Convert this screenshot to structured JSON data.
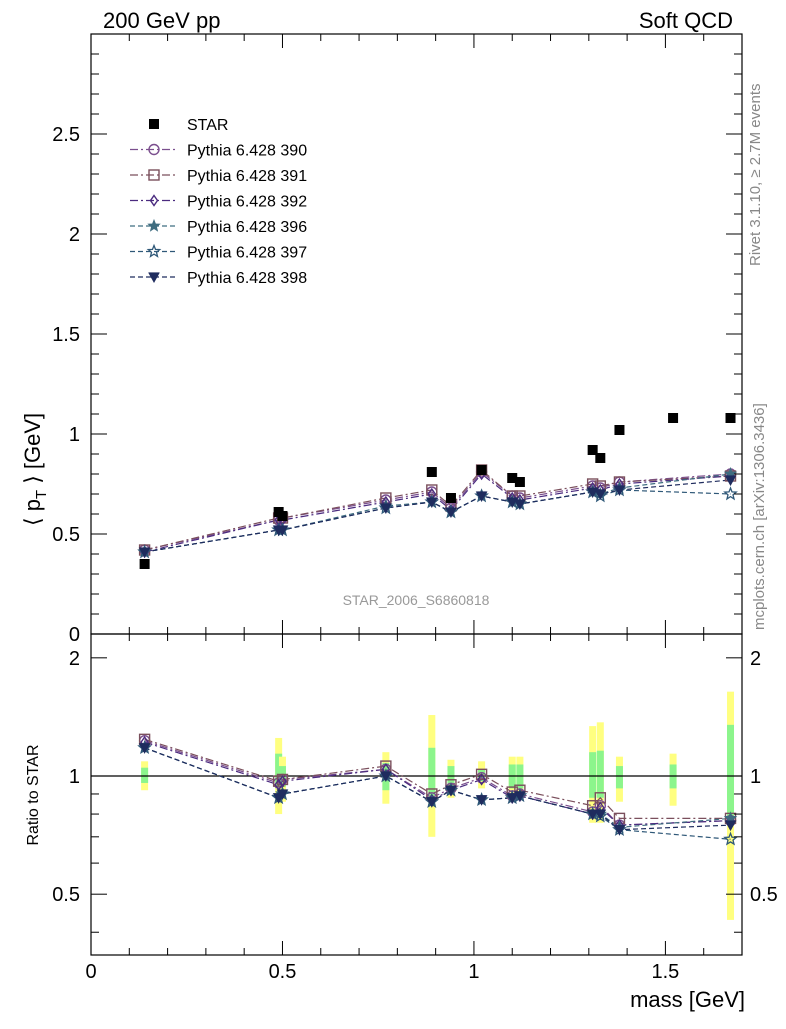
{
  "header": {
    "left": "200 GeV pp",
    "right": "Soft QCD"
  },
  "side_labels": {
    "rivet": "Rivet 3.1.10, ≥ 2.7M events",
    "mcplots": "mcplots.cern.ch [arXiv:1306.3436]"
  },
  "watermark": "STAR_2006_S6860818",
  "chart_data": [
    {
      "type": "scatter",
      "panel": "main",
      "ylabel": "⟨ p_T ⟩ [GeV]",
      "xlim": [
        0,
        1.7
      ],
      "ylim": [
        0,
        3.0
      ],
      "y_ticks": [
        0,
        0.5,
        1,
        1.5,
        2,
        2.5
      ],
      "y_tick_labels": [
        "0",
        "0.5",
        "1",
        "1.5",
        "2",
        "2.5"
      ],
      "legend_position": "top-left",
      "x": [
        0.14,
        0.49,
        0.5,
        0.77,
        0.89,
        0.94,
        1.02,
        1.1,
        1.12,
        1.31,
        1.33,
        1.38,
        1.52,
        1.67
      ],
      "data": {
        "name": "STAR",
        "marker": "square",
        "color": "#000000",
        "x": [
          0.14,
          0.49,
          0.5,
          0.89,
          0.94,
          1.02,
          1.1,
          1.12,
          1.31,
          1.33,
          1.38,
          1.52,
          1.67
        ],
        "values": [
          0.35,
          0.61,
          0.59,
          0.81,
          0.68,
          0.82,
          0.78,
          0.76,
          0.92,
          0.88,
          1.02,
          1.08,
          1.08
        ]
      },
      "series": [
        {
          "name": "Pythia 6.428 390",
          "marker": "circle-open",
          "dash": "dashdot",
          "color": "#7b4f8e",
          "x": [
            0.14,
            0.49,
            0.5,
            0.77,
            0.89,
            0.94,
            1.02,
            1.1,
            1.12,
            1.31,
            1.33,
            1.38,
            1.67
          ],
          "values": [
            0.42,
            0.57,
            0.58,
            0.67,
            0.71,
            0.63,
            0.81,
            0.69,
            0.68,
            0.74,
            0.73,
            0.76,
            0.8
          ]
        },
        {
          "name": "Pythia 6.428 391",
          "marker": "square-open",
          "dash": "dashdot",
          "color": "#7a4f5c",
          "x": [
            0.14,
            0.49,
            0.5,
            0.77,
            0.89,
            0.94,
            1.02,
            1.1,
            1.12,
            1.31,
            1.33,
            1.38,
            1.67
          ],
          "values": [
            0.42,
            0.58,
            0.58,
            0.68,
            0.72,
            0.64,
            0.82,
            0.69,
            0.69,
            0.75,
            0.74,
            0.76,
            0.79
          ]
        },
        {
          "name": "Pythia 6.428 392",
          "marker": "diamond-open",
          "dash": "dashdot",
          "color": "#4b2b7f",
          "x": [
            0.14,
            0.49,
            0.5,
            0.77,
            0.89,
            0.94,
            1.02,
            1.1,
            1.12,
            1.31,
            1.33,
            1.38,
            1.67
          ],
          "values": [
            0.41,
            0.57,
            0.57,
            0.66,
            0.7,
            0.62,
            0.8,
            0.68,
            0.67,
            0.73,
            0.72,
            0.75,
            0.79
          ]
        },
        {
          "name": "Pythia 6.428 396",
          "marker": "star",
          "dash": "dashed",
          "color": "#3f6d80",
          "x": [
            0.14,
            0.49,
            0.5,
            0.77,
            0.89,
            0.94,
            1.02,
            1.1,
            1.12,
            1.31,
            1.33,
            1.38,
            1.67
          ],
          "values": [
            0.41,
            0.52,
            0.52,
            0.64,
            0.66,
            0.61,
            0.69,
            0.66,
            0.65,
            0.71,
            0.7,
            0.73,
            0.8
          ]
        },
        {
          "name": "Pythia 6.428 397",
          "marker": "star-open",
          "dash": "dashed",
          "color": "#2f5878",
          "x": [
            0.14,
            0.49,
            0.5,
            0.77,
            0.89,
            0.94,
            1.02,
            1.1,
            1.12,
            1.31,
            1.33,
            1.38,
            1.67
          ],
          "values": [
            0.41,
            0.52,
            0.52,
            0.63,
            0.66,
            0.61,
            0.69,
            0.66,
            0.65,
            0.71,
            0.69,
            0.72,
            0.7
          ]
        },
        {
          "name": "Pythia 6.428 398",
          "marker": "triangle-down",
          "dash": "dashed",
          "color": "#1f2c5e",
          "x": [
            0.14,
            0.49,
            0.5,
            0.77,
            0.89,
            0.94,
            1.02,
            1.1,
            1.12,
            1.31,
            1.33,
            1.38,
            1.67
          ],
          "values": [
            0.41,
            0.52,
            0.52,
            0.63,
            0.66,
            0.61,
            0.69,
            0.66,
            0.65,
            0.71,
            0.7,
            0.72,
            0.77
          ]
        }
      ]
    },
    {
      "type": "line",
      "panel": "ratio",
      "xlabel": "mass [GeV]",
      "ylabel": "Ratio to STAR",
      "xlim": [
        0,
        1.7
      ],
      "ylim": [
        0.35,
        2.3
      ],
      "x_ticks": [
        0,
        0.5,
        1,
        1.5
      ],
      "x_tick_labels": [
        "0",
        "0.5",
        "1",
        "1.5"
      ],
      "y_ticks": [
        0.5,
        1,
        2
      ],
      "y_tick_labels": [
        "0.5",
        "1",
        "2"
      ],
      "reference_line": 1,
      "uncertainty_bands": {
        "x": [
          0.14,
          0.49,
          0.5,
          0.77,
          0.89,
          0.94,
          1.02,
          1.1,
          1.12,
          1.31,
          1.33,
          1.38,
          1.52,
          1.67
        ],
        "inner_green": [
          [
            0.96,
            1.05
          ],
          [
            0.93,
            1.14
          ],
          [
            0.94,
            1.06
          ],
          [
            0.92,
            1.08
          ],
          [
            0.88,
            1.18
          ],
          [
            0.94,
            1.06
          ],
          [
            0.97,
            1.04
          ],
          [
            0.93,
            1.07
          ],
          [
            0.93,
            1.07
          ],
          [
            0.88,
            1.15
          ],
          [
            0.88,
            1.16
          ],
          [
            0.93,
            1.06
          ],
          [
            0.93,
            1.07
          ],
          [
            0.78,
            1.35
          ]
        ],
        "outer_yellow": [
          [
            0.92,
            1.09
          ],
          [
            0.8,
            1.25
          ],
          [
            0.86,
            1.12
          ],
          [
            0.85,
            1.15
          ],
          [
            0.7,
            1.43
          ],
          [
            0.88,
            1.1
          ],
          [
            0.93,
            1.09
          ],
          [
            0.87,
            1.12
          ],
          [
            0.87,
            1.12
          ],
          [
            0.76,
            1.34
          ],
          [
            0.76,
            1.37
          ],
          [
            0.86,
            1.12
          ],
          [
            0.84,
            1.14
          ],
          [
            0.43,
            1.64
          ]
        ]
      },
      "series": [
        {
          "name": "Pythia 6.428 390",
          "values": [
            1.23,
            0.96,
            0.98,
            1.04,
            0.88,
            0.93,
            0.99,
            0.89,
            0.9,
            0.81,
            0.84,
            0.75,
            0.77
          ]
        },
        {
          "name": "Pythia 6.428 391",
          "values": [
            1.24,
            0.97,
            0.98,
            1.06,
            0.9,
            0.95,
            1.01,
            0.91,
            0.92,
            0.84,
            0.88,
            0.78,
            0.78
          ]
        },
        {
          "name": "Pythia 6.428 392",
          "values": [
            1.22,
            0.95,
            0.97,
            1.04,
            0.87,
            0.92,
            0.98,
            0.88,
            0.89,
            0.8,
            0.83,
            0.75,
            0.77
          ]
        },
        {
          "name": "Pythia 6.428 396",
          "values": [
            1.18,
            0.88,
            0.9,
            1.0,
            0.86,
            0.92,
            0.87,
            0.88,
            0.89,
            0.8,
            0.8,
            0.74,
            0.78
          ]
        },
        {
          "name": "Pythia 6.428 397",
          "values": [
            1.18,
            0.88,
            0.9,
            1.0,
            0.86,
            0.92,
            0.87,
            0.88,
            0.89,
            0.8,
            0.79,
            0.73,
            0.69
          ]
        },
        {
          "name": "Pythia 6.428 398",
          "values": [
            1.18,
            0.88,
            0.9,
            1.0,
            0.86,
            0.92,
            0.87,
            0.88,
            0.89,
            0.8,
            0.8,
            0.73,
            0.75
          ]
        }
      ]
    }
  ]
}
